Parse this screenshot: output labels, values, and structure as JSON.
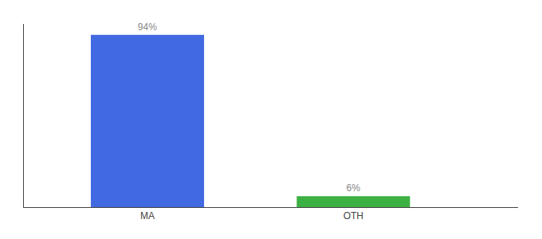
{
  "chart_data": {
    "type": "bar",
    "categories": [
      "MA",
      "OTH"
    ],
    "values": [
      94,
      6
    ],
    "value_labels": [
      "94%",
      "6%"
    ],
    "colors": [
      "#4169e1",
      "#3cb043"
    ],
    "ylim": [
      0,
      100
    ],
    "grid": false,
    "data_labels": true,
    "tick_labels": "x"
  }
}
